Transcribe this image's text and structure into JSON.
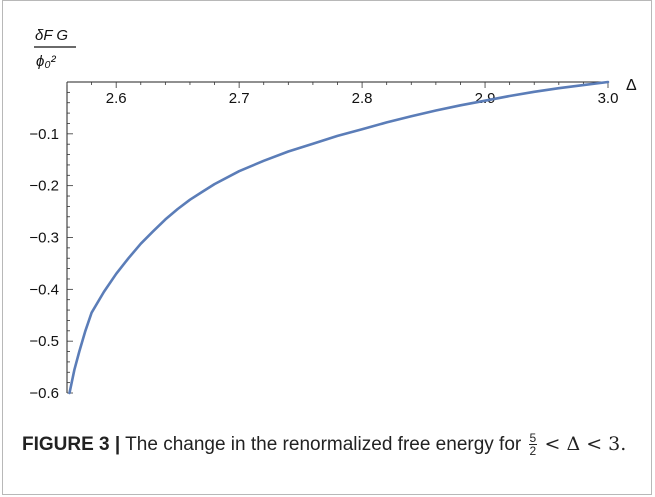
{
  "chart_data": {
    "type": "line",
    "title": "",
    "xlabel": "Δ",
    "ylabel": {
      "numerator": "δF G",
      "denominator": "ϕ₀²"
    },
    "xlim": [
      2.56,
      3.0
    ],
    "ylim": [
      -0.6,
      0.0
    ],
    "x_ticks": [
      2.6,
      2.7,
      2.8,
      2.9,
      3.0
    ],
    "x_tick_labels": [
      "2.6",
      "2.7",
      "2.8",
      "2.9",
      "3.0"
    ],
    "y_ticks": [
      -0.1,
      -0.2,
      -0.3,
      -0.4,
      -0.5,
      -0.6
    ],
    "y_tick_labels": [
      "−0.1",
      "−0.2",
      "−0.3",
      "−0.4",
      "−0.5",
      "−0.6"
    ],
    "grid": false,
    "legend": "none",
    "series": [
      {
        "color": "#5b7db8",
        "x": [
          2.562,
          2.566,
          2.57,
          2.575,
          2.58,
          2.59,
          2.6,
          2.61,
          2.62,
          2.63,
          2.64,
          2.65,
          2.66,
          2.67,
          2.68,
          2.7,
          2.72,
          2.74,
          2.76,
          2.78,
          2.8,
          2.82,
          2.84,
          2.86,
          2.88,
          2.9,
          2.92,
          2.94,
          2.96,
          2.98,
          3.0
        ],
        "y": [
          -0.6,
          -0.555,
          -0.52,
          -0.48,
          -0.445,
          -0.405,
          -0.37,
          -0.34,
          -0.312,
          -0.288,
          -0.265,
          -0.245,
          -0.227,
          -0.212,
          -0.197,
          -0.172,
          -0.152,
          -0.134,
          -0.119,
          -0.104,
          -0.091,
          -0.078,
          -0.066,
          -0.055,
          -0.045,
          -0.036,
          -0.027,
          -0.019,
          -0.012,
          -0.006,
          0.0
        ]
      }
    ]
  },
  "caption": {
    "label": "FIGURE 3 |",
    "text": "The change in the renormalized free energy for",
    "frac_num": "5",
    "frac_den": "2",
    "math_rest": "< Δ < 3."
  }
}
